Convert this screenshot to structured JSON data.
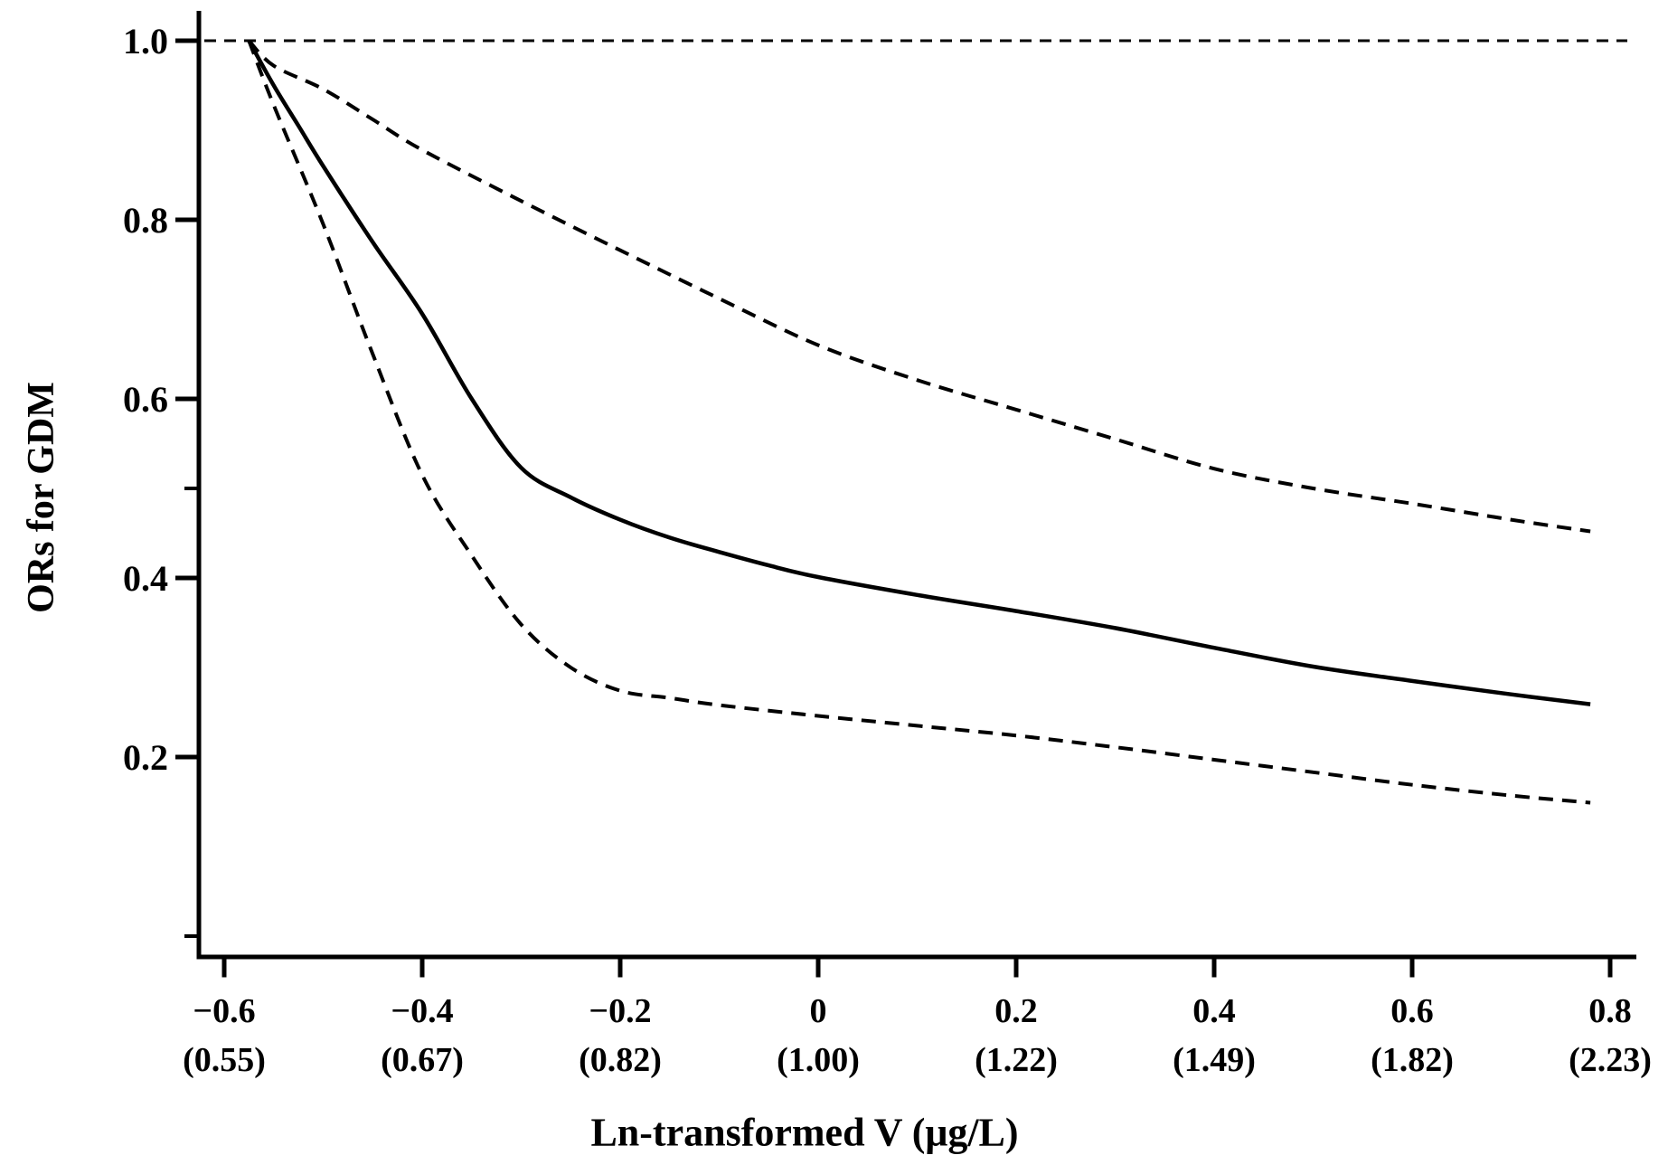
{
  "figure_type": "line-chart",
  "colors": {
    "background": "#ffffff",
    "ink": "#000000"
  },
  "y_axis": {
    "title": "ORs for GDM",
    "tick_values": [
      1.0,
      0.8,
      0.6,
      0.4,
      0.2
    ],
    "tick_labels": [
      "1.0",
      "0.8",
      "0.6",
      "0.4",
      "0.2"
    ],
    "unlabeled_tick_values": [
      0.5,
      0.0
    ]
  },
  "x_axis": {
    "title": "Ln-transformed V (μg/L)",
    "tick_values": [
      -0.6,
      -0.4,
      -0.2,
      0.0,
      0.2,
      0.4,
      0.6,
      0.8
    ],
    "tick_labels": [
      "−0.6",
      "−0.4",
      "−0.2",
      "0",
      "0.2",
      "0.4",
      "0.6",
      "0.8"
    ],
    "tick_sublabels": [
      "(0.55)",
      "(0.67)",
      "(0.82)",
      "(1.00)",
      "(1.22)",
      "(1.49)",
      "(1.82)",
      "(2.23)"
    ]
  },
  "chart_data": {
    "type": "line",
    "title": "",
    "xlabel": "Ln-transformed V (μg/L)",
    "ylabel": "ORs for GDM",
    "xlim": [
      -0.66,
      0.86
    ],
    "ylim": [
      -0.03,
      1.04
    ],
    "grid": false,
    "legend": false,
    "reference_line": {
      "y": 1.0,
      "style": "dashed"
    },
    "series": [
      {
        "name": "odds-ratio-estimate",
        "style": "solid",
        "x": [
          -0.575,
          -0.55,
          -0.525,
          -0.5,
          -0.45,
          -0.4,
          -0.35,
          -0.3,
          -0.25,
          -0.2,
          -0.15,
          -0.1,
          -0.05,
          0.0,
          0.1,
          0.2,
          0.3,
          0.4,
          0.5,
          0.6,
          0.7,
          0.78
        ],
        "y": [
          1.0,
          0.95,
          0.905,
          0.86,
          0.775,
          0.695,
          0.6,
          0.523,
          0.49,
          0.465,
          0.445,
          0.429,
          0.414,
          0.401,
          0.381,
          0.363,
          0.344,
          0.322,
          0.301,
          0.285,
          0.27,
          0.259
        ]
      },
      {
        "name": "upper-95ci",
        "style": "dashed",
        "x": [
          -0.575,
          -0.55,
          -0.5,
          -0.45,
          -0.4,
          -0.3,
          -0.2,
          -0.1,
          0.0,
          0.1,
          0.2,
          0.3,
          0.4,
          0.5,
          0.6,
          0.7,
          0.78
        ],
        "y": [
          1.0,
          0.972,
          0.946,
          0.912,
          0.878,
          0.821,
          0.766,
          0.712,
          0.66,
          0.621,
          0.588,
          0.555,
          0.522,
          0.5,
          0.483,
          0.465,
          0.452
        ]
      },
      {
        "name": "lower-95ci",
        "style": "dashed",
        "x": [
          -0.575,
          -0.55,
          -0.5,
          -0.45,
          -0.4,
          -0.35,
          -0.3,
          -0.25,
          -0.2,
          -0.15,
          -0.1,
          0.0,
          0.1,
          0.2,
          0.3,
          0.4,
          0.5,
          0.6,
          0.7,
          0.78
        ],
        "y": [
          1.0,
          0.928,
          0.795,
          0.65,
          0.515,
          0.425,
          0.348,
          0.3,
          0.274,
          0.266,
          0.258,
          0.246,
          0.235,
          0.224,
          0.211,
          0.197,
          0.183,
          0.169,
          0.157,
          0.149
        ]
      }
    ]
  }
}
